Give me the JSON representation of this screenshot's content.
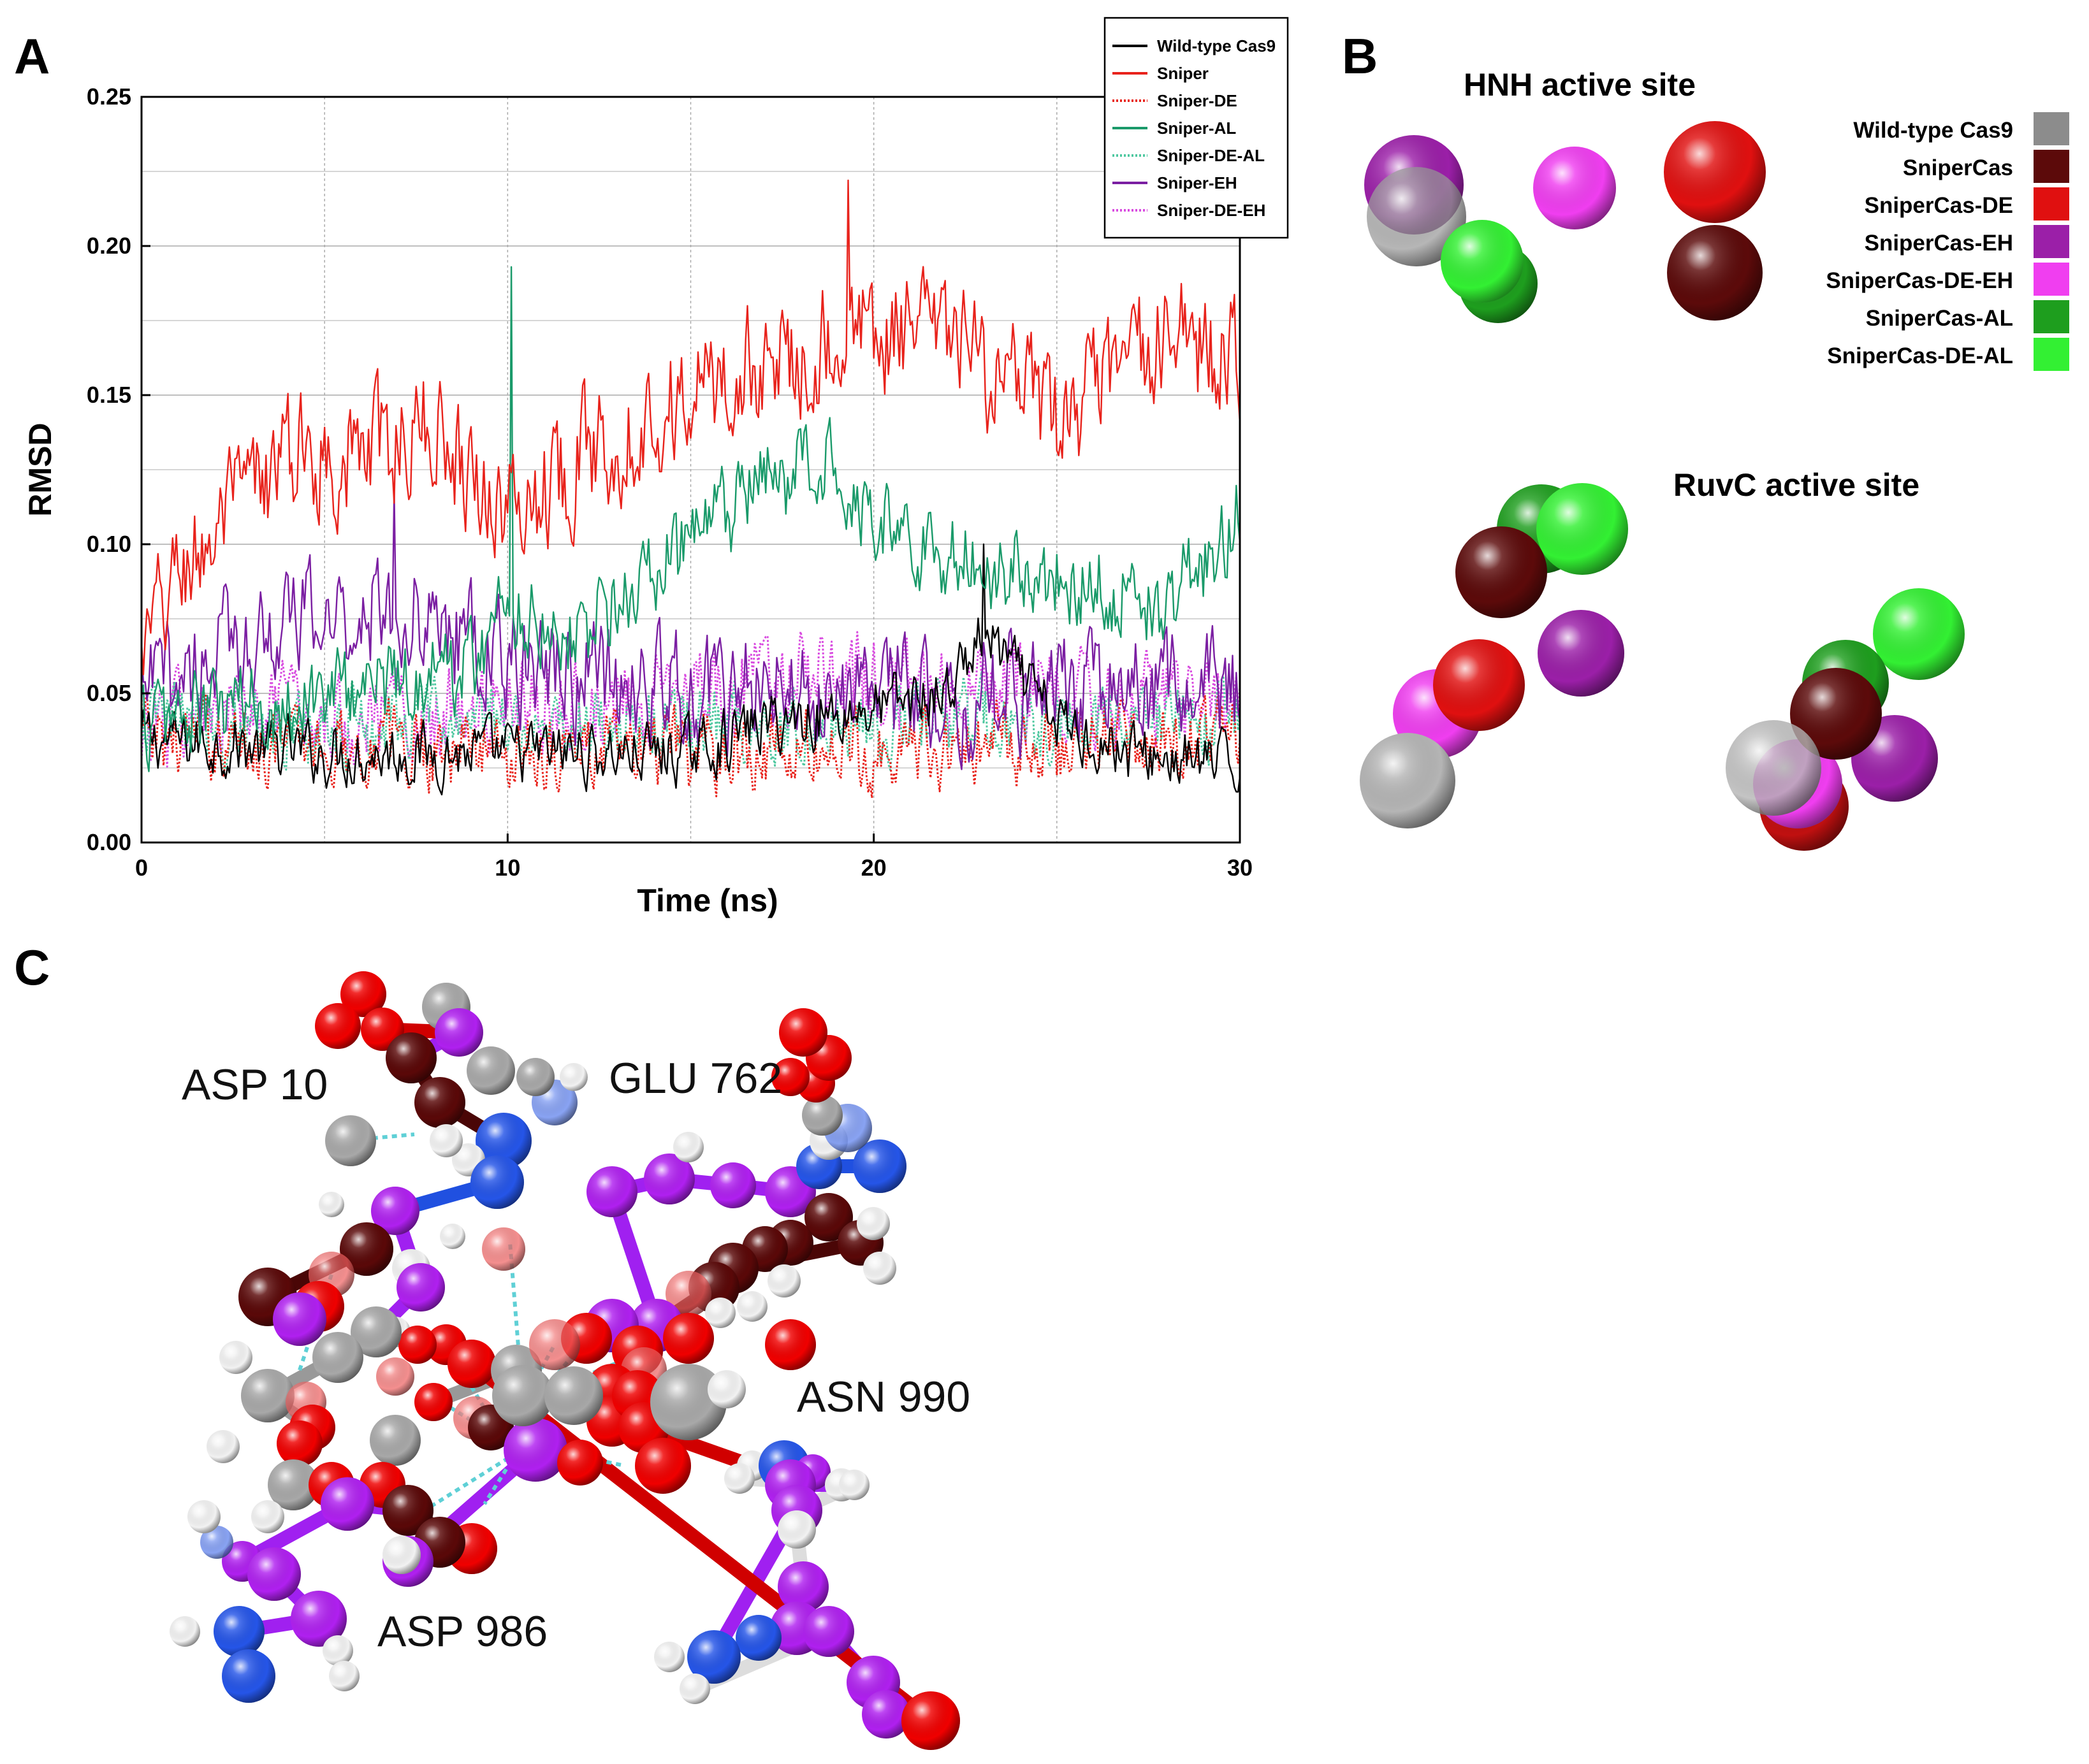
{
  "panels": {
    "a": "A",
    "b": "B",
    "c": "C"
  },
  "panel_b": {
    "hnh_title": "HNH active site",
    "ruvc_title": "RuvC active site",
    "legend": [
      {
        "label": "Wild-type Cas9",
        "color": "#8c8c8c"
      },
      {
        "label": "SniperCas",
        "color": "#5c0a0a"
      },
      {
        "label": "SniperCas-DE",
        "color": "#e01010"
      },
      {
        "label": "SniperCas-EH",
        "color": "#9b1fa8"
      },
      {
        "label": "SniperCas-DE-EH",
        "color": "#f03ef0"
      },
      {
        "label": "SniperCas-AL",
        "color": "#1e9e1e"
      },
      {
        "label": "SniperCas-DE-AL",
        "color": "#33f033"
      }
    ]
  },
  "panel_c": {
    "labels": [
      "ASP 10",
      "GLU 762",
      "ASN 990",
      "ASP 986"
    ]
  },
  "chart_data": {
    "type": "line",
    "title": "",
    "xlabel": "Time (ns)",
    "ylabel": "RMSD",
    "xlim": [
      0,
      30
    ],
    "ylim": [
      0,
      0.25
    ],
    "xticks": [
      "0",
      "10",
      "20",
      "30"
    ],
    "yticks": [
      "0.00",
      "0.05",
      "0.10",
      "0.15",
      "0.20",
      "0.25"
    ],
    "grid": true,
    "legend_position": "top-right",
    "samples_per_series": 601,
    "series": [
      {
        "name": "Wild-type Cas9",
        "color": "#000000",
        "dash": "solid",
        "profile_x": [
          0,
          5,
          10,
          15,
          17,
          20,
          22,
          23,
          25,
          27,
          30
        ],
        "profile_y": [
          0.035,
          0.03,
          0.03,
          0.03,
          0.04,
          0.045,
          0.05,
          0.07,
          0.04,
          0.03,
          0.025
        ],
        "noise": 0.01,
        "peak": [
          23,
          0.1
        ]
      },
      {
        "name": "Sniper",
        "color": "#e8231c",
        "dash": "solid",
        "profile_x": [
          0,
          1,
          4,
          6,
          8,
          10,
          12,
          15,
          17,
          19,
          20,
          22,
          25,
          28,
          30
        ],
        "profile_y": [
          0.06,
          0.09,
          0.13,
          0.13,
          0.14,
          0.11,
          0.13,
          0.15,
          0.16,
          0.17,
          0.17,
          0.17,
          0.14,
          0.17,
          0.16
        ],
        "noise": 0.02,
        "peak": [
          19.3,
          0.222
        ]
      },
      {
        "name": "Sniper-DE",
        "color": "#e8231c",
        "dash": "dot",
        "profile_x": [
          0,
          15,
          30
        ],
        "profile_y": [
          0.035,
          0.03,
          0.035
        ],
        "noise": 0.013,
        "peak": null
      },
      {
        "name": "Sniper-AL",
        "color": "#1a9a6a",
        "dash": "solid",
        "profile_x": [
          0,
          5,
          9,
          10,
          12,
          15,
          17,
          19,
          20,
          22,
          25,
          28,
          30
        ],
        "profile_y": [
          0.04,
          0.05,
          0.06,
          0.08,
          0.07,
          0.1,
          0.12,
          0.13,
          0.11,
          0.095,
          0.09,
          0.08,
          0.11
        ],
        "noise": 0.015,
        "peak": [
          10.1,
          0.193
        ]
      },
      {
        "name": "Sniper-DE-AL",
        "color": "#4fc8a0",
        "dash": "dot",
        "profile_x": [
          0,
          15,
          30
        ],
        "profile_y": [
          0.04,
          0.04,
          0.04
        ],
        "noise": 0.013,
        "peak": null
      },
      {
        "name": "Sniper-EH",
        "color": "#7b1fa2",
        "dash": "solid",
        "profile_x": [
          0,
          3,
          7,
          10,
          15,
          20,
          25,
          30
        ],
        "profile_y": [
          0.05,
          0.07,
          0.08,
          0.06,
          0.05,
          0.05,
          0.05,
          0.05
        ],
        "noise": 0.018,
        "peak": [
          6.9,
          0.118
        ]
      },
      {
        "name": "Sniper-DE-EH",
        "color": "#d94be0",
        "dash": "dot",
        "profile_x": [
          0,
          10,
          18,
          30
        ],
        "profile_y": [
          0.04,
          0.045,
          0.055,
          0.045
        ],
        "noise": 0.015,
        "peak": null
      }
    ]
  }
}
